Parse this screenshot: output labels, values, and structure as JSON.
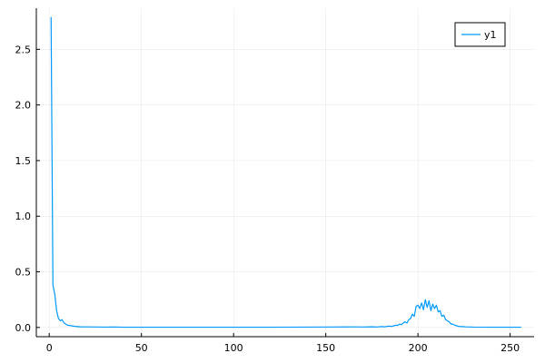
{
  "chart_data": {
    "type": "line",
    "title": "",
    "xlabel": "",
    "ylabel": "",
    "xlim": [
      -7,
      263
    ],
    "ylim": [
      -0.083,
      2.87
    ],
    "xticks": [
      0,
      50,
      100,
      150,
      200,
      250
    ],
    "yticks": [
      0.0,
      0.5,
      1.0,
      1.5,
      2.0,
      2.5
    ],
    "xtick_labels": [
      "0",
      "50",
      "100",
      "150",
      "200",
      "250"
    ],
    "ytick_labels": [
      "0.0",
      "0.5",
      "1.0",
      "1.5",
      "2.0",
      "2.5"
    ],
    "grid": true,
    "legend_position": "top-right",
    "series": [
      {
        "name": "y1",
        "color": "#009AFA",
        "points": [
          [
            1,
            2.79
          ],
          [
            2,
            0.38
          ],
          [
            3,
            0.3
          ],
          [
            4,
            0.15
          ],
          [
            5,
            0.08
          ],
          [
            6,
            0.06
          ],
          [
            7,
            0.07
          ],
          [
            8,
            0.04
          ],
          [
            9,
            0.03
          ],
          [
            10,
            0.02
          ],
          [
            12,
            0.015
          ],
          [
            14,
            0.01
          ],
          [
            17,
            0.006
          ],
          [
            20,
            0.005
          ],
          [
            25,
            0.004
          ],
          [
            30,
            0.003
          ],
          [
            35,
            0.004
          ],
          [
            40,
            0.002
          ],
          [
            50,
            0.002
          ],
          [
            60,
            0.002
          ],
          [
            80,
            0.002
          ],
          [
            100,
            0.002
          ],
          [
            120,
            0.002
          ],
          [
            140,
            0.003
          ],
          [
            155,
            0.004
          ],
          [
            165,
            0.005
          ],
          [
            170,
            0.004
          ],
          [
            175,
            0.006
          ],
          [
            178,
            0.004
          ],
          [
            180,
            0.008
          ],
          [
            182,
            0.006
          ],
          [
            184,
            0.012
          ],
          [
            186,
            0.01
          ],
          [
            188,
            0.02
          ],
          [
            189,
            0.018
          ],
          [
            190,
            0.03
          ],
          [
            191,
            0.025
          ],
          [
            192,
            0.04
          ],
          [
            193,
            0.05
          ],
          [
            194,
            0.04
          ],
          [
            195,
            0.07
          ],
          [
            196,
            0.08
          ],
          [
            197,
            0.12
          ],
          [
            198,
            0.1
          ],
          [
            199,
            0.19
          ],
          [
            200,
            0.2
          ],
          [
            201,
            0.17
          ],
          [
            202,
            0.22
          ],
          [
            203,
            0.16
          ],
          [
            204,
            0.25
          ],
          [
            205,
            0.18
          ],
          [
            206,
            0.24
          ],
          [
            207,
            0.15
          ],
          [
            208,
            0.21
          ],
          [
            209,
            0.17
          ],
          [
            210,
            0.2
          ],
          [
            211,
            0.14
          ],
          [
            212,
            0.15
          ],
          [
            213,
            0.1
          ],
          [
            214,
            0.11
          ],
          [
            215,
            0.07
          ],
          [
            216,
            0.06
          ],
          [
            217,
            0.05
          ],
          [
            218,
            0.03
          ],
          [
            219,
            0.03
          ],
          [
            220,
            0.02
          ],
          [
            221,
            0.015
          ],
          [
            222,
            0.01
          ],
          [
            224,
            0.008
          ],
          [
            226,
            0.005
          ],
          [
            230,
            0.003
          ],
          [
            240,
            0.002
          ],
          [
            256,
            0.002
          ]
        ]
      }
    ]
  }
}
